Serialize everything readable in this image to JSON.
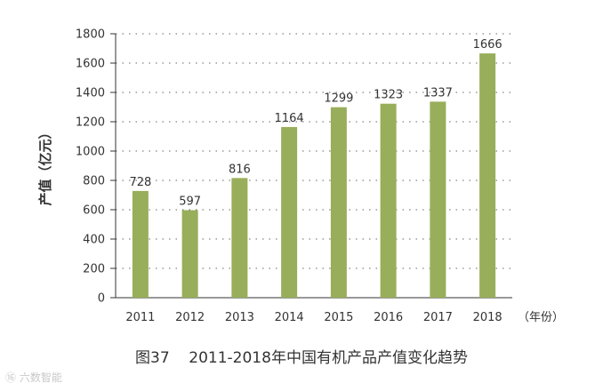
{
  "figure": {
    "caption": "图37    2011-2018年中国有机产品产值变化趋势",
    "watermark": "⑯ 六数智能"
  },
  "colors": {
    "bar": "#98ae5a",
    "axis": "#333333",
    "grid": "#666666"
  },
  "chart_data": {
    "type": "bar",
    "categories": [
      "2011",
      "2012",
      "2013",
      "2014",
      "2015",
      "2016",
      "2017",
      "2018"
    ],
    "values": [
      728,
      597,
      816,
      1164,
      1299,
      1323,
      1337,
      1666
    ],
    "xlabel": "（年份）",
    "ylabel": "产值（亿元）",
    "ylim": [
      0,
      1800
    ],
    "yticks": [
      0,
      200,
      400,
      600,
      800,
      1000,
      1200,
      1400,
      1600,
      1800
    ],
    "grid": true,
    "legend": "none"
  }
}
